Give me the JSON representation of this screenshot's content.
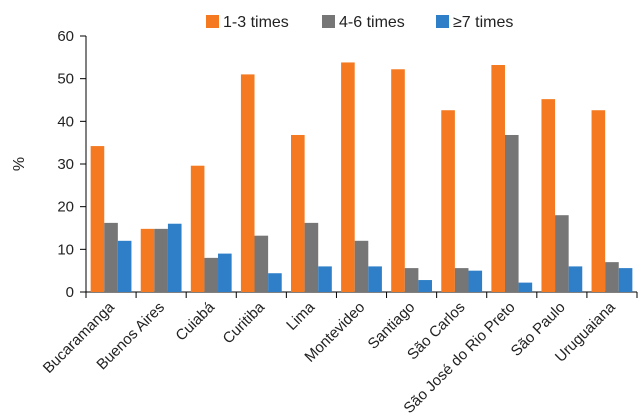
{
  "chart_data": {
    "type": "bar",
    "title": "",
    "xlabel": "",
    "ylabel": "%",
    "ylim": [
      0,
      60
    ],
    "yticks": [
      0,
      10,
      20,
      30,
      40,
      50,
      60
    ],
    "grid": false,
    "legend_position": "top",
    "categories": [
      "Bucaramanga",
      "Buenos Aires",
      "Cuiabá",
      "Curitiba",
      "Lima",
      "Montevideo",
      "Santiago",
      "São Carlos",
      "São José do Rio Preto",
      "São Paulo",
      "Uruguaiana"
    ],
    "series": [
      {
        "name": "1-3 times",
        "color": "#F47920",
        "values": [
          34.2,
          14.8,
          29.6,
          51.0,
          36.8,
          53.8,
          52.2,
          42.6,
          53.2,
          45.2,
          42.6
        ]
      },
      {
        "name": "4-6 times",
        "color": "#767676",
        "values": [
          16.2,
          14.8,
          8.0,
          13.2,
          16.2,
          12.0,
          5.6,
          5.6,
          36.8,
          18.0,
          7.0
        ]
      },
      {
        "name": "≥7 times",
        "color": "#2E7FC8",
        "values": [
          12.0,
          16.0,
          9.0,
          4.4,
          6.0,
          6.0,
          2.8,
          5.0,
          2.2,
          6.0,
          5.6
        ]
      }
    ]
  }
}
